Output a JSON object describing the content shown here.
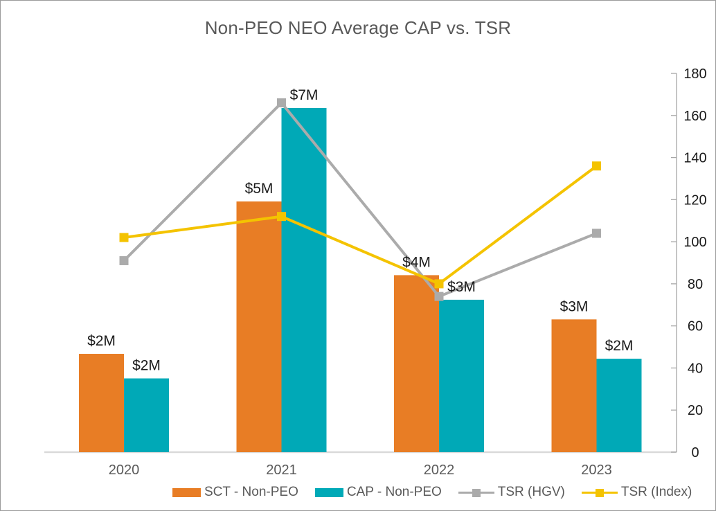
{
  "chart_data": {
    "type": "combo-bar-line",
    "title": "Non-PEO NEO Average CAP vs. TSR",
    "categories": [
      "2020",
      "2021",
      "2022",
      "2023"
    ],
    "bar_series": [
      {
        "name": "SCT - Non-PEO",
        "color": "#E87D25",
        "data_labels": [
          "$2M",
          "$5M",
          "$4M",
          "$3M"
        ],
        "values_musd_est": [
          2.0,
          5.1,
          3.6,
          2.7
        ]
      },
      {
        "name": "CAP - Non-PEO",
        "color": "#00A9B7",
        "data_labels": [
          "$2M",
          "$7M",
          "$3M",
          "$2M"
        ],
        "values_musd_est": [
          1.5,
          7.0,
          3.1,
          1.9
        ]
      }
    ],
    "line_series": [
      {
        "name": "TSR (HGV)",
        "color": "#ABABAB",
        "axis": "right",
        "values": [
          91,
          166,
          74,
          104
        ]
      },
      {
        "name": "TSR (Index)",
        "color": "#F4C300",
        "axis": "right",
        "values": [
          102,
          112,
          80,
          136
        ]
      }
    ],
    "right_axis": {
      "min": 0,
      "max": 180,
      "step": 20
    },
    "left_axis": "hidden",
    "grid": "off",
    "legend_position": "bottom"
  },
  "colors": {
    "title_text": "#595959",
    "axis_text": "#1a1a1a",
    "category_text": "#595959",
    "baseline": "#d9d9d9",
    "axis_line": "#a6a6a6",
    "frame_border": "#9b9b9b"
  }
}
